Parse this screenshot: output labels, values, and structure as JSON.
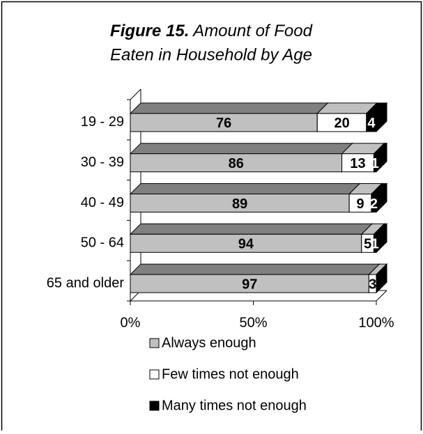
{
  "chart_data": {
    "type": "bar3d_stacked_horizontal",
    "figure_label": "Figure 15.",
    "title": "Amount of Food Eaten in Household by Age",
    "categories": [
      "19 - 29",
      "30 - 39",
      "40 - 49",
      "50 - 64",
      "65 and older"
    ],
    "series": [
      {
        "name": "Always enough",
        "color": "#c0c0c0",
        "top_color": "#808080",
        "values": [
          76,
          86,
          89,
          94,
          97
        ]
      },
      {
        "name": "Few times not enough",
        "color": "#ffffff",
        "top_color": "#c0c0c0",
        "values": [
          20,
          13,
          9,
          5,
          3
        ]
      },
      {
        "name": "Many times not enough",
        "color": "#000000",
        "top_color": "#000000",
        "values": [
          4,
          1,
          2,
          1,
          0
        ]
      }
    ],
    "xlim": [
      0,
      100
    ],
    "xticks": [
      {
        "value": 0,
        "label": "0%"
      },
      {
        "value": 50,
        "label": "50%"
      },
      {
        "value": 100,
        "label": "100%"
      }
    ]
  }
}
